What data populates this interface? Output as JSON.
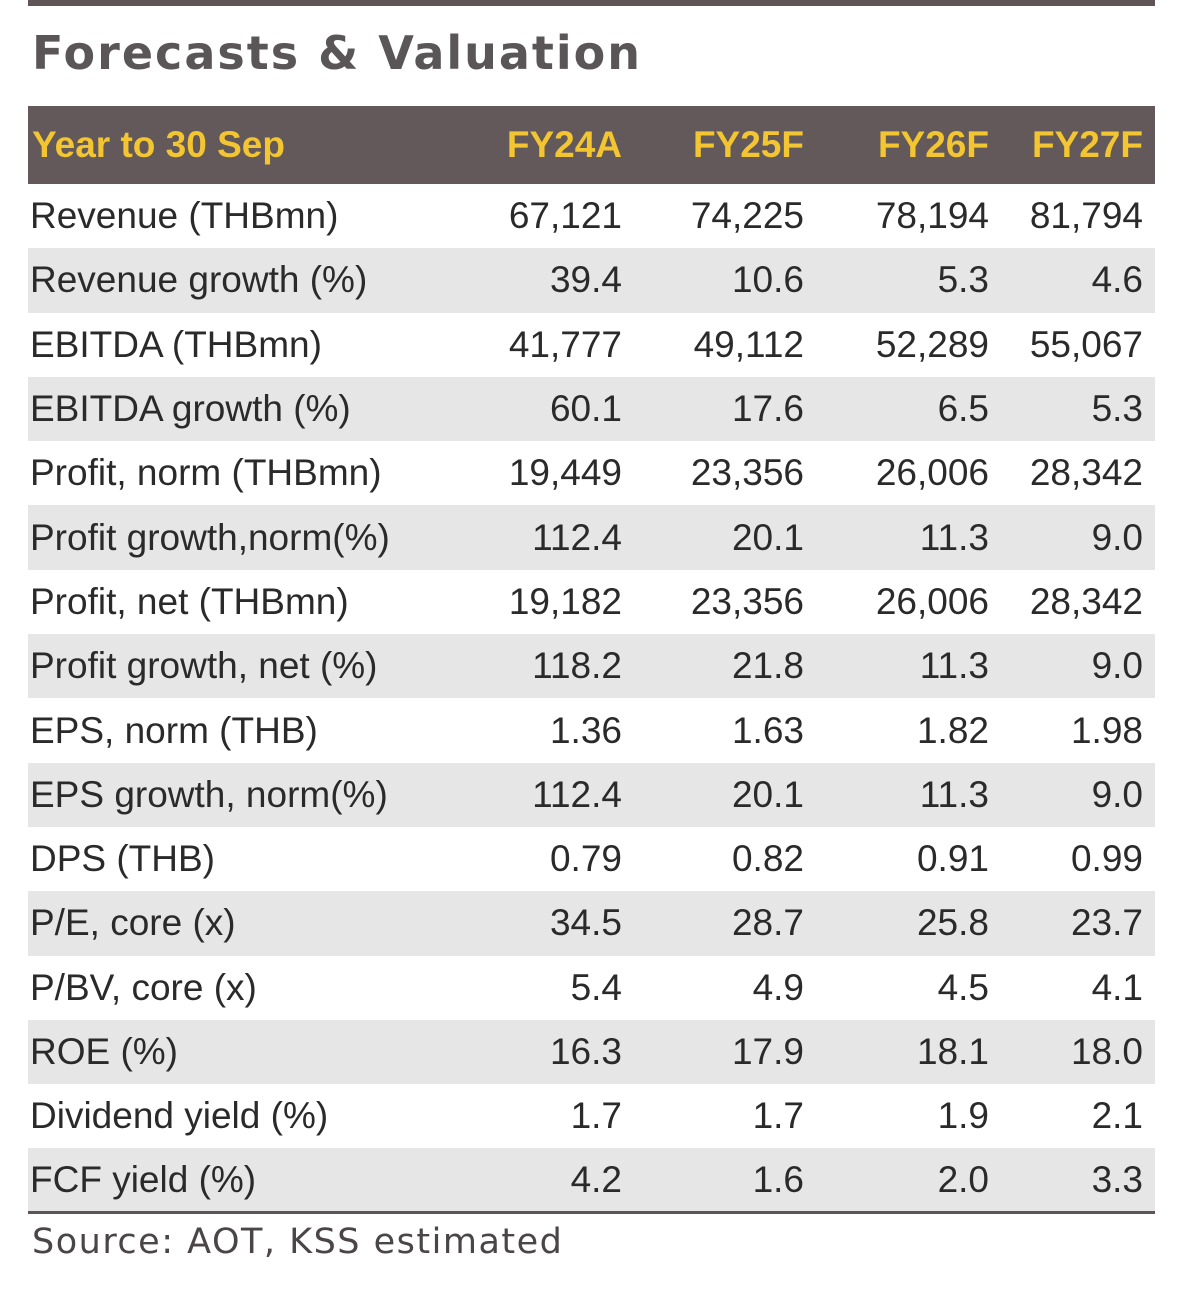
{
  "title": "Forecasts & Valuation",
  "header": {
    "label": "Year to 30 Sep",
    "columns": [
      "FY24A",
      "FY25F",
      "FY26F",
      "FY27F"
    ]
  },
  "rows": [
    {
      "label": "Revenue (THBmn)",
      "values": [
        "67,121",
        "74,225",
        "78,194",
        "81,794"
      ]
    },
    {
      "label": "Revenue growth (%)",
      "values": [
        "39.4",
        "10.6",
        "5.3",
        "4.6"
      ]
    },
    {
      "label": "EBITDA (THBmn)",
      "values": [
        "41,777",
        "49,112",
        "52,289",
        "55,067"
      ]
    },
    {
      "label": "EBITDA growth (%)",
      "values": [
        "60.1",
        "17.6",
        "6.5",
        "5.3"
      ]
    },
    {
      "label": "Profit, norm (THBmn)",
      "values": [
        "19,449",
        "23,356",
        "26,006",
        "28,342"
      ]
    },
    {
      "label": "Profit growth,norm(%)",
      "values": [
        "112.4",
        "20.1",
        "11.3",
        "9.0"
      ]
    },
    {
      "label": "Profit, net (THBmn)",
      "values": [
        "19,182",
        "23,356",
        "26,006",
        "28,342"
      ]
    },
    {
      "label": "Profit growth, net (%)",
      "values": [
        "118.2",
        "21.8",
        "11.3",
        "9.0"
      ]
    },
    {
      "label": "EPS, norm (THB)",
      "values": [
        "1.36",
        "1.63",
        "1.82",
        "1.98"
      ]
    },
    {
      "label": "EPS growth, norm(%)",
      "values": [
        "112.4",
        "20.1",
        "11.3",
        "9.0"
      ]
    },
    {
      "label": "DPS (THB)",
      "values": [
        "0.79",
        "0.82",
        "0.91",
        "0.99"
      ]
    },
    {
      "label": "P/E, core (x)",
      "values": [
        "34.5",
        "28.7",
        "25.8",
        "23.7"
      ]
    },
    {
      "label": "P/BV, core (x)",
      "values": [
        "5.4",
        "4.9",
        "4.5",
        "4.1"
      ]
    },
    {
      "label": "ROE (%)",
      "values": [
        "16.3",
        "17.9",
        "18.1",
        "18.0"
      ]
    },
    {
      "label": "Dividend yield (%)",
      "values": [
        "1.7",
        "1.7",
        "1.9",
        "2.1"
      ]
    },
    {
      "label": "FCF yield (%)",
      "values": [
        "4.2",
        "1.6",
        "2.0",
        "3.3"
      ]
    }
  ],
  "source": "Source: AOT, KSS estimated"
}
